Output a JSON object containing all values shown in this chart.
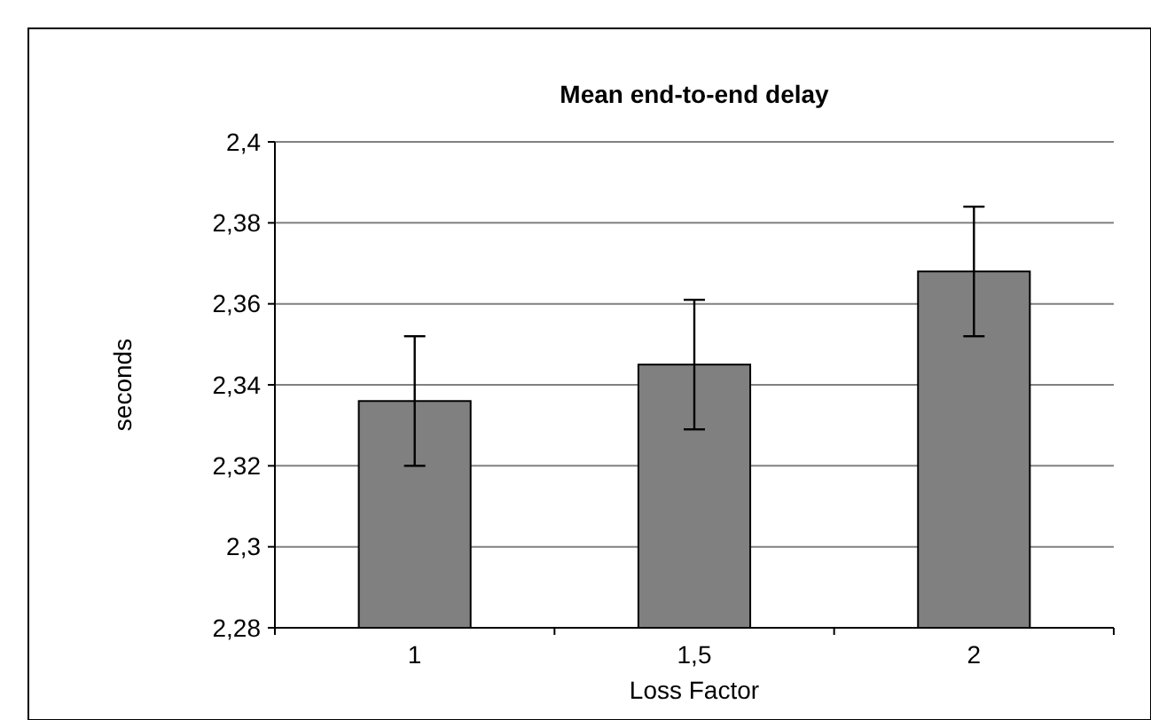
{
  "chart_data": {
    "type": "bar",
    "title": "Mean end-to-end delay",
    "xlabel": "Loss Factor",
    "ylabel": "seconds",
    "categories": [
      "1",
      "1,5",
      "2"
    ],
    "values": [
      2.336,
      2.345,
      2.368
    ],
    "errors": [
      0.016,
      0.016,
      0.016
    ],
    "color": "#808080",
    "ylim": [
      2.28,
      2.4
    ],
    "yticks": [
      {
        "value": 2.28,
        "label": "2,28"
      },
      {
        "value": 2.3,
        "label": "2,3"
      },
      {
        "value": 2.32,
        "label": "2,32"
      },
      {
        "value": 2.34,
        "label": "2,34"
      },
      {
        "value": 2.36,
        "label": "2,36"
      },
      {
        "value": 2.38,
        "label": "2,38"
      },
      {
        "value": 2.4,
        "label": "2,4"
      }
    ],
    "grid": "y"
  }
}
